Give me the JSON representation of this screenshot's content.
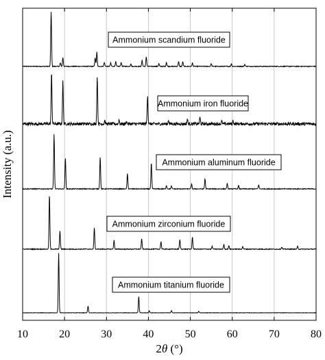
{
  "chart_data": {
    "type": "line",
    "title": "",
    "xlabel": "2θ (°)",
    "xlabel_parts": {
      "prefix": "2",
      "symbol": "θ",
      "suffix": " (°)"
    },
    "ylabel": "Intensity (a.u.)",
    "xlim": [
      10,
      80
    ],
    "xticks": [
      "10",
      "20",
      "30",
      "40",
      "50",
      "60",
      "70",
      "80"
    ],
    "grid": "vertical",
    "legend": "none",
    "series": [
      {
        "name": "Ammonium scandium fluoride",
        "baseline_noise": 0.6,
        "peaks": [
          [
            16.8,
            80
          ],
          [
            19.0,
            5
          ],
          [
            19.6,
            13
          ],
          [
            27.3,
            13
          ],
          [
            27.7,
            21
          ],
          [
            29.5,
            6
          ],
          [
            31.0,
            5
          ],
          [
            32.2,
            7
          ],
          [
            33.5,
            6
          ],
          [
            35.8,
            4
          ],
          [
            38.5,
            9
          ],
          [
            39.5,
            14
          ],
          [
            42.5,
            4
          ],
          [
            44.3,
            6
          ],
          [
            47.2,
            7
          ],
          [
            48.2,
            7
          ],
          [
            50.5,
            5
          ],
          [
            55.0,
            4
          ],
          [
            59.8,
            4
          ],
          [
            63.0,
            3
          ]
        ]
      },
      {
        "name": "Ammonium iron fluoride",
        "baseline_noise": 2.2,
        "peaks": [
          [
            16.9,
            75
          ],
          [
            19.6,
            62
          ],
          [
            27.8,
            70
          ],
          [
            29.6,
            5
          ],
          [
            33.0,
            6
          ],
          [
            34.8,
            4
          ],
          [
            39.8,
            42
          ],
          [
            44.8,
            6
          ],
          [
            49.3,
            7
          ],
          [
            52.3,
            9
          ],
          [
            57.5,
            4
          ],
          [
            60.2,
            5
          ]
        ]
      },
      {
        "name": "Ammonium aluminum fluoride",
        "baseline_noise": 0.6,
        "peaks": [
          [
            17.5,
            80
          ],
          [
            20.2,
            45
          ],
          [
            28.5,
            47
          ],
          [
            35.0,
            22
          ],
          [
            40.7,
            38
          ],
          [
            44.3,
            5
          ],
          [
            45.5,
            4
          ],
          [
            50.3,
            7
          ],
          [
            53.5,
            15
          ],
          [
            58.8,
            8
          ],
          [
            61.5,
            5
          ],
          [
            66.3,
            6
          ]
        ]
      },
      {
        "name": "Ammonium zirconium fluoride",
        "baseline_noise": 0.6,
        "peaks": [
          [
            16.4,
            80
          ],
          [
            18.9,
            27
          ],
          [
            27.1,
            32
          ],
          [
            31.8,
            13
          ],
          [
            38.4,
            15
          ],
          [
            43.0,
            11
          ],
          [
            47.5,
            14
          ],
          [
            50.5,
            18
          ],
          [
            55.2,
            4
          ],
          [
            58.0,
            7
          ],
          [
            59.2,
            5
          ],
          [
            62.5,
            4
          ],
          [
            71.8,
            3
          ],
          [
            75.6,
            4
          ]
        ]
      },
      {
        "name": "Ammonium titanium fluoride",
        "baseline_noise": 0.3,
        "peaks": [
          [
            18.6,
            88
          ],
          [
            25.6,
            10
          ],
          [
            37.7,
            24
          ],
          [
            40.2,
            3
          ],
          [
            45.5,
            3
          ],
          [
            52.0,
            2
          ]
        ]
      }
    ]
  },
  "colors": {
    "line": "#000000",
    "grid": "#c8c8c8",
    "background": "#ffffff"
  }
}
